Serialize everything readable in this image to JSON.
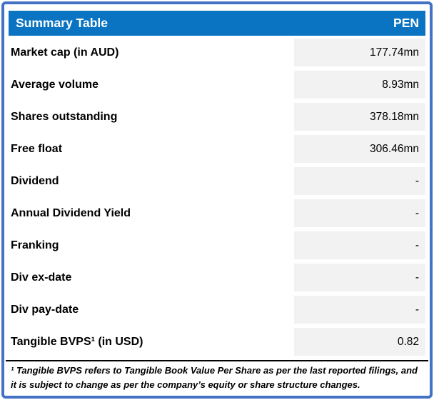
{
  "header": {
    "title": "Summary Table",
    "ticker": "PEN"
  },
  "rows": [
    {
      "label": "Market cap (in AUD)",
      "value": "177.74mn"
    },
    {
      "label": "Average volume",
      "value": "8.93mn"
    },
    {
      "label": "Shares outstanding",
      "value": "378.18mn"
    },
    {
      "label": "Free float",
      "value": "306.46mn"
    },
    {
      "label": "Dividend",
      "value": "-"
    },
    {
      "label": "Annual Dividend Yield",
      "value": "-"
    },
    {
      "label": "Franking",
      "value": "-"
    },
    {
      "label": "Div ex-date",
      "value": "-"
    },
    {
      "label": "Div pay-date",
      "value": "-"
    },
    {
      "label": "Tangible BVPS¹ (in USD)",
      "value": "0.82"
    }
  ],
  "footnote": {
    "text": "¹ Tangible BVPS refers to Tangible Book Value Per Share as per the last reported filings, and it is subject to change as per the company’s equity or share structure changes."
  },
  "colors": {
    "header_bg": "#0A74C3",
    "border_color": "#4472C4",
    "value_bg": "#F2F2F2"
  }
}
